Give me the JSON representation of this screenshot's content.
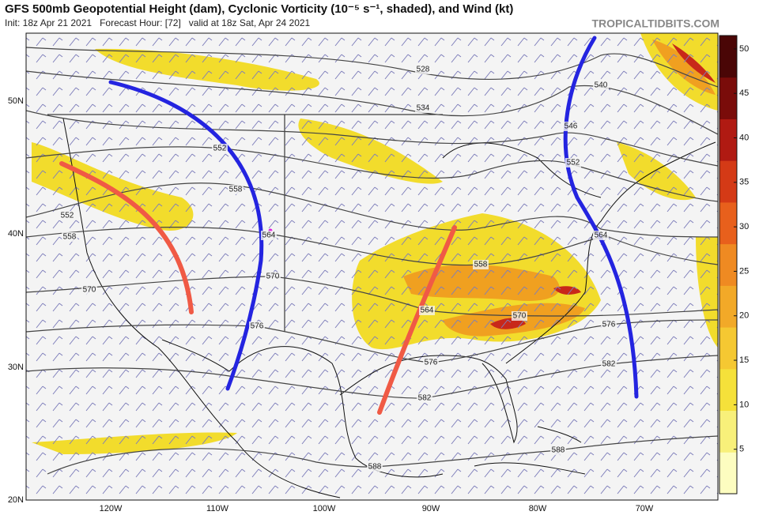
{
  "header": {
    "title": "GFS 500mb Geopotential Height (dam), Cyclonic Vorticity (10⁻⁵ s⁻¹, shaded), and Wind (kt)",
    "subtitle": "Init: 18z Apr 21 2021   Forecast Hour: [72]   valid at 18z Sat, Apr 24 2021",
    "watermark": "TROPICALTIDBITS.COM"
  },
  "map": {
    "lat_labels": [
      "50N",
      "40N",
      "30N",
      "20N"
    ],
    "lon_labels": [
      "120W",
      "110W",
      "100W",
      "90W",
      "80W",
      "70W"
    ],
    "contour_labels": [
      "528",
      "534",
      "540",
      "546",
      "552",
      "552",
      "552",
      "558",
      "558",
      "558",
      "564",
      "564",
      "564",
      "570",
      "570",
      "570",
      "576",
      "576",
      "576",
      "582",
      "582",
      "588",
      "588"
    ]
  },
  "colorbar": {
    "lim": [
      0,
      51.5
    ],
    "ticks": [
      5,
      10,
      15,
      20,
      25,
      30,
      35,
      40,
      45,
      50
    ]
  }
}
